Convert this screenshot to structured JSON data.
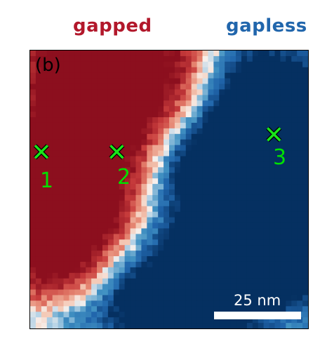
{
  "header": {
    "gapped_label": "gapped",
    "gapless_label": "gapless"
  },
  "colors": {
    "gapped": "#b2182b",
    "gapless": "#2166ac",
    "neutral": "#f7f0ec",
    "marker": "#00e000"
  },
  "panel": {
    "label": "(b)"
  },
  "markers": [
    {
      "label": "1"
    },
    {
      "label": "2"
    },
    {
      "label": "3"
    }
  ],
  "scale_bar": {
    "label": "25 nm"
  }
}
